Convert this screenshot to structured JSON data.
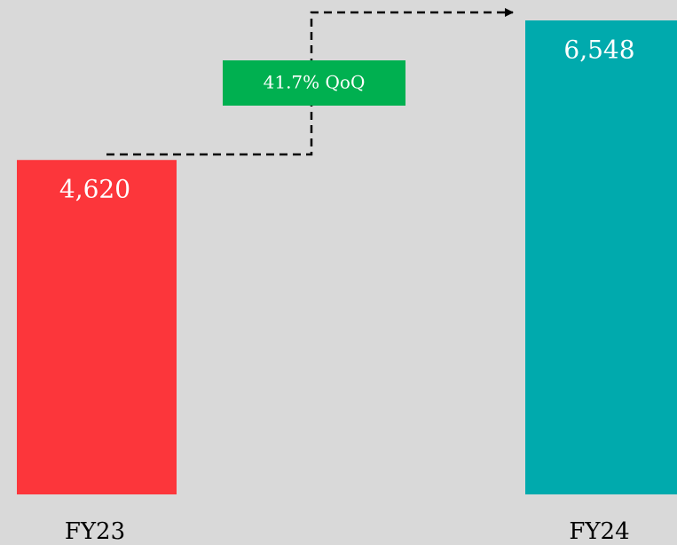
{
  "chart_data": {
    "type": "bar",
    "categories": [
      "FY23",
      "FY24"
    ],
    "values": [
      4620,
      6548
    ],
    "value_labels": [
      "4,620",
      "6,548"
    ],
    "colors": [
      "#fc363b",
      "#00aaad"
    ],
    "annotation": "41.7% QoQ"
  }
}
